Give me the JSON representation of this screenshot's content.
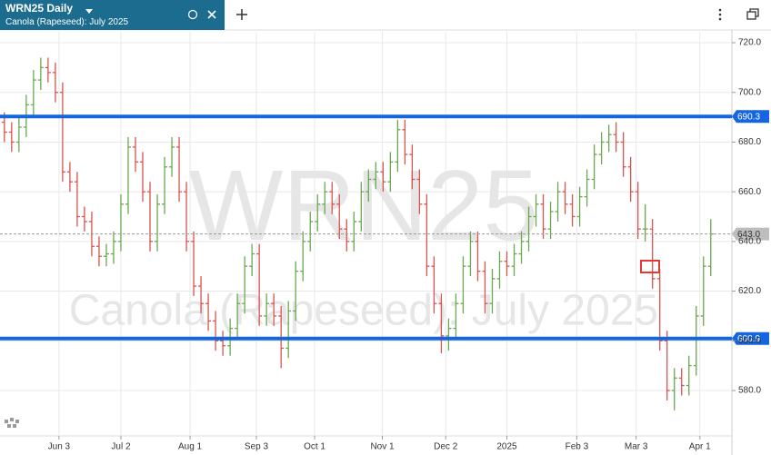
{
  "chart_data": {
    "type": "ohlc",
    "symbol": "WRN25",
    "interval": "Daily",
    "description": "Canola (Rapeseed): July 2025",
    "ylim": [
      561.7,
      724.4
    ],
    "yticks": [
      {
        "value": 580,
        "label": "580.0"
      },
      {
        "value": 600,
        "label": "600.0"
      },
      {
        "value": 620,
        "label": "620.0"
      },
      {
        "value": 640,
        "label": "640.0"
      },
      {
        "value": 660,
        "label": "660.0"
      },
      {
        "value": 680,
        "label": "680.0"
      },
      {
        "value": 700,
        "label": "700.0"
      },
      {
        "value": 720,
        "label": "720.0"
      }
    ],
    "xlim": [
      -0.6,
      99.9
    ],
    "xticks": [
      {
        "value": 7.5,
        "label": "Jun 3"
      },
      {
        "value": 16,
        "label": "Jul 2"
      },
      {
        "value": 25.5,
        "label": "Aug 1"
      },
      {
        "value": 34.6,
        "label": "Sep 3"
      },
      {
        "value": 42.6,
        "label": "Oct 1"
      },
      {
        "value": 51.9,
        "label": "Nov 1"
      },
      {
        "value": 60.6,
        "label": "Dec 2"
      },
      {
        "value": 69,
        "label": "2025"
      },
      {
        "value": 78.6,
        "label": "Feb 3"
      },
      {
        "value": 86.75,
        "label": "Mar 3"
      },
      {
        "value": 95.5,
        "label": "Apr 1"
      }
    ],
    "levels": [
      690.3,
      600.9
    ],
    "level_color": "#1565e0",
    "last_price": {
      "value": 643,
      "label": "643.0"
    },
    "up_color": "#6aa84f",
    "down_color": "#d9534f",
    "grid": true,
    "ohlc": [
      [
        688,
        692,
        680,
        684
      ],
      [
        684,
        688,
        676,
        680
      ],
      [
        680,
        690,
        676,
        686
      ],
      [
        686,
        699,
        682,
        695
      ],
      [
        695,
        709,
        691,
        705
      ],
      [
        705,
        714,
        701,
        710
      ],
      [
        710,
        714,
        704,
        708
      ],
      [
        708,
        712,
        696,
        700
      ],
      [
        700,
        704,
        664,
        668
      ],
      [
        668,
        672,
        660,
        664
      ],
      [
        664,
        668,
        646,
        650
      ],
      [
        650,
        654,
        644,
        648
      ],
      [
        648,
        652,
        634,
        638
      ],
      [
        638,
        642,
        630,
        634
      ],
      [
        634,
        639,
        630,
        635
      ],
      [
        635,
        644,
        631,
        640
      ],
      [
        640,
        659,
        636,
        655
      ],
      [
        655,
        682,
        651,
        678
      ],
      [
        678,
        682,
        668,
        672
      ],
      [
        672,
        676,
        656,
        660
      ],
      [
        660,
        664,
        636,
        640
      ],
      [
        640,
        659,
        636,
        655
      ],
      [
        655,
        674,
        651,
        670
      ],
      [
        670,
        682,
        666,
        678
      ],
      [
        678,
        682,
        656,
        660
      ],
      [
        660,
        664,
        636,
        640
      ],
      [
        640,
        644,
        618,
        622
      ],
      [
        622,
        626,
        611,
        615
      ],
      [
        615,
        619,
        604,
        608
      ],
      [
        608,
        612,
        596,
        600
      ],
      [
        600,
        604,
        594,
        598
      ],
      [
        598,
        609,
        594,
        605
      ],
      [
        605,
        619,
        601,
        615
      ],
      [
        615,
        634,
        611,
        630
      ],
      [
        630,
        639,
        626,
        635
      ],
      [
        635,
        639,
        606,
        610
      ],
      [
        610,
        619,
        606,
        615
      ],
      [
        615,
        619,
        606,
        610
      ],
      [
        610,
        614,
        589,
        597
      ],
      [
        597,
        616,
        593,
        612
      ],
      [
        612,
        632,
        608,
        628
      ],
      [
        628,
        644,
        624,
        640
      ],
      [
        640,
        652,
        636,
        648
      ],
      [
        648,
        659,
        644,
        655
      ],
      [
        655,
        664,
        651,
        660
      ],
      [
        660,
        664,
        651,
        655
      ],
      [
        655,
        659,
        641,
        645
      ],
      [
        645,
        649,
        636,
        640
      ],
      [
        640,
        652,
        636,
        648
      ],
      [
        648,
        664,
        644,
        660
      ],
      [
        660,
        669,
        656,
        665
      ],
      [
        665,
        672,
        661,
        668
      ],
      [
        668,
        672,
        660,
        664
      ],
      [
        664,
        676,
        660,
        672
      ],
      [
        672,
        689,
        668,
        685
      ],
      [
        685,
        689,
        671,
        675
      ],
      [
        675,
        679,
        661,
        665
      ],
      [
        665,
        669,
        651,
        655
      ],
      [
        655,
        659,
        626,
        630
      ],
      [
        630,
        634,
        611,
        615
      ],
      [
        615,
        619,
        595,
        602
      ],
      [
        602,
        609,
        596,
        605
      ],
      [
        605,
        619,
        601,
        615
      ],
      [
        615,
        634,
        611,
        630
      ],
      [
        630,
        644,
        626,
        640
      ],
      [
        640,
        644,
        624,
        628
      ],
      [
        628,
        632,
        611,
        615
      ],
      [
        615,
        629,
        611,
        625
      ],
      [
        625,
        636,
        621,
        632
      ],
      [
        632,
        636,
        626,
        630
      ],
      [
        630,
        639,
        626,
        635
      ],
      [
        635,
        644,
        631,
        640
      ],
      [
        640,
        654,
        636,
        650
      ],
      [
        650,
        659,
        646,
        655
      ],
      [
        655,
        659,
        641,
        645
      ],
      [
        645,
        656,
        641,
        652
      ],
      [
        652,
        664,
        648,
        660
      ],
      [
        660,
        664,
        651,
        655
      ],
      [
        655,
        659,
        646,
        650
      ],
      [
        650,
        662,
        646,
        658
      ],
      [
        658,
        669,
        654,
        665
      ],
      [
        665,
        679,
        661,
        675
      ],
      [
        675,
        684,
        671,
        680
      ],
      [
        680,
        687,
        676,
        683
      ],
      [
        683,
        688,
        676,
        680
      ],
      [
        680,
        684,
        666,
        670
      ],
      [
        670,
        674,
        656,
        660
      ],
      [
        660,
        664,
        641,
        645
      ],
      [
        645,
        655,
        640,
        645
      ],
      [
        645,
        649,
        621,
        625
      ],
      [
        625,
        629,
        596,
        600
      ],
      [
        600,
        604,
        576,
        580
      ],
      [
        580,
        589,
        572,
        585
      ],
      [
        585,
        589,
        578,
        582
      ],
      [
        582,
        594,
        578,
        590
      ],
      [
        590,
        614,
        586,
        610
      ],
      [
        610,
        634,
        606,
        630
      ],
      [
        630,
        649,
        626,
        643
      ]
    ]
  }
}
